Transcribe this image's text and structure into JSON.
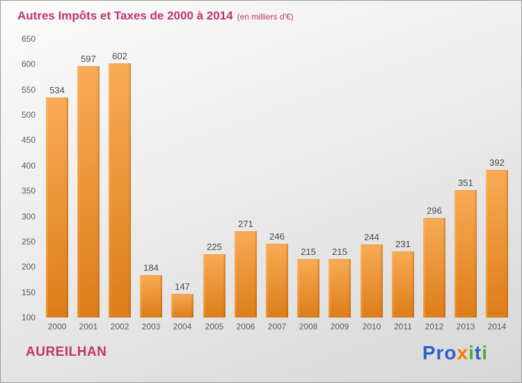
{
  "header": {
    "title": "Autres Impôts et Taxes de 2000 à 2014",
    "subtitle": "(en milliers d'€)"
  },
  "footer": {
    "city": "AUREILHAN",
    "logo_text": "Proxiti",
    "logo_letters": [
      {
        "ch": "P",
        "color": "#2e62c8"
      },
      {
        "ch": "r",
        "color": "#2e62c8"
      },
      {
        "ch": "o",
        "color": "#2e62c8"
      },
      {
        "ch": "x",
        "color": "#f57c00"
      },
      {
        "ch": "i",
        "color": "#4caf2a"
      },
      {
        "ch": "t",
        "color": "#2e62c8"
      },
      {
        "ch": "i",
        "color": "#4caf2a"
      }
    ]
  },
  "theme": {
    "title_color": "#c0336f",
    "bar_top": "#f8ab55",
    "bar_bottom": "#dd7d19",
    "axis_label_color": "#5a5a5a",
    "value_label_color": "#4a4a4a"
  },
  "chart_data": {
    "type": "bar",
    "title": "Autres Impôts et Taxes de 2000 à 2014",
    "subtitle": "(en milliers d'€)",
    "xlabel": "",
    "ylabel": "",
    "categories": [
      "2000",
      "2001",
      "2002",
      "2003",
      "2004",
      "2005",
      "2006",
      "2007",
      "2008",
      "2009",
      "2010",
      "2011",
      "2012",
      "2013",
      "2014"
    ],
    "values": [
      534,
      597,
      602,
      184,
      147,
      225,
      271,
      246,
      215,
      215,
      244,
      231,
      296,
      351,
      392
    ],
    "ylim": [
      100,
      650
    ],
    "ytick_step": 50,
    "grid": false,
    "legend": "none",
    "bar_color": "#e8902f"
  }
}
